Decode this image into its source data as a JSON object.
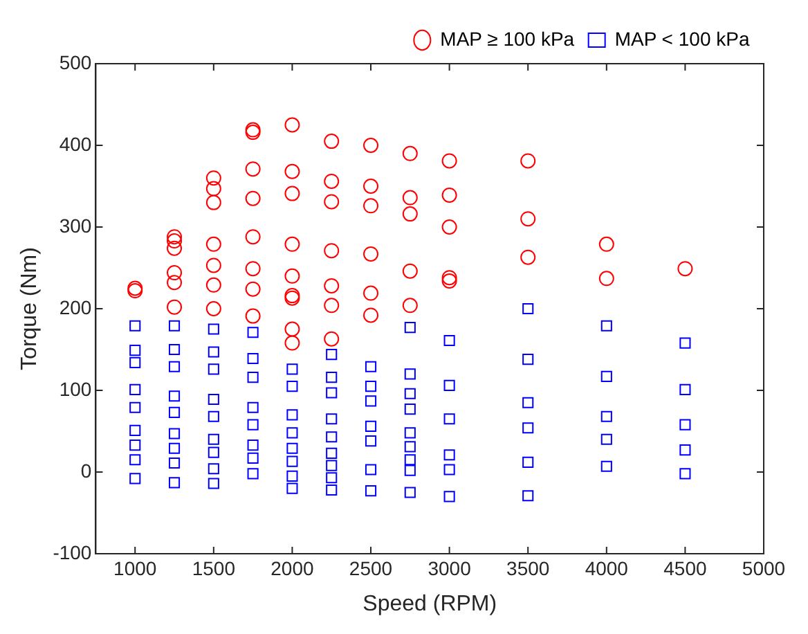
{
  "chart_data": {
    "type": "scatter",
    "xlabel": "Speed (RPM)",
    "ylabel": "Torque (Nm)",
    "xlim": [
      750,
      5000
    ],
    "ylim": [
      -100,
      500
    ],
    "xticks": [
      1000,
      1500,
      2000,
      2500,
      3000,
      3500,
      4000,
      4500,
      5000
    ],
    "yticks": [
      -100,
      0,
      100,
      200,
      300,
      400,
      500
    ],
    "grid": false,
    "legend": "top right",
    "series": [
      {
        "name": "MAP ≥ 100 kPa",
        "color": "#ff0000",
        "marker": "circle",
        "x": [
          1000,
          1000,
          1250,
          1250,
          1250,
          1250,
          1250,
          1250,
          1500,
          1500,
          1500,
          1500,
          1500,
          1500,
          1500,
          1750,
          1750,
          1750,
          1750,
          1750,
          1750,
          1750,
          1750,
          2000,
          2000,
          2000,
          2000,
          2000,
          2000,
          2000,
          2000,
          2000,
          2250,
          2250,
          2250,
          2250,
          2250,
          2250,
          2250,
          2500,
          2500,
          2500,
          2500,
          2500,
          2500,
          2750,
          2750,
          2750,
          2750,
          2750,
          3000,
          3000,
          3000,
          3000,
          3000,
          3500,
          3500,
          3500,
          4000,
          4000,
          4500
        ],
        "values": [
          222,
          225,
          288,
          283,
          274,
          244,
          232,
          202,
          360,
          347,
          330,
          279,
          253,
          229,
          200,
          419,
          416,
          371,
          335,
          288,
          249,
          224,
          191,
          425,
          368,
          341,
          279,
          240,
          216,
          213,
          175,
          158,
          405,
          356,
          331,
          271,
          228,
          204,
          163,
          400,
          350,
          326,
          267,
          219,
          192,
          390,
          336,
          316,
          246,
          204,
          381,
          339,
          300,
          238,
          234,
          381,
          310,
          263,
          279,
          237,
          249
        ]
      },
      {
        "name": "MAP < 100 kPa",
        "color": "#0000ff",
        "marker": "square",
        "x": [
          1000,
          1000,
          1000,
          1000,
          1000,
          1000,
          1000,
          1000,
          1000,
          1250,
          1250,
          1250,
          1250,
          1250,
          1250,
          1250,
          1250,
          1250,
          1500,
          1500,
          1500,
          1500,
          1500,
          1500,
          1500,
          1500,
          1500,
          1750,
          1750,
          1750,
          1750,
          1750,
          1750,
          1750,
          1750,
          2000,
          2000,
          2000,
          2000,
          2000,
          2000,
          2000,
          2000,
          2250,
          2250,
          2250,
          2250,
          2250,
          2250,
          2250,
          2250,
          2250,
          2500,
          2500,
          2500,
          2500,
          2500,
          2500,
          2500,
          2750,
          2750,
          2750,
          2750,
          2750,
          2750,
          2750,
          2750,
          2750,
          3000,
          3000,
          3000,
          3000,
          3000,
          3000,
          3500,
          3500,
          3500,
          3500,
          3500,
          3500,
          4000,
          4000,
          4000,
          4000,
          4000,
          4500,
          4500,
          4500,
          4500,
          4500
        ],
        "values": [
          179,
          149,
          134,
          101,
          79,
          51,
          33,
          15,
          -8,
          179,
          150,
          129,
          93,
          73,
          47,
          29,
          11,
          -13,
          175,
          147,
          126,
          89,
          68,
          40,
          24,
          4,
          -14,
          171,
          139,
          116,
          79,
          58,
          33,
          17,
          -2,
          126,
          105,
          70,
          48,
          29,
          13,
          -5,
          -20,
          144,
          116,
          97,
          65,
          43,
          23,
          8,
          -7,
          -22,
          129,
          105,
          87,
          56,
          38,
          3,
          -23,
          177,
          120,
          96,
          77,
          48,
          31,
          15,
          2,
          -25,
          161,
          106,
          65,
          21,
          3,
          -30,
          200,
          138,
          85,
          54,
          12,
          -29,
          179,
          117,
          68,
          40,
          7,
          158,
          101,
          58,
          27,
          -2
        ]
      }
    ]
  }
}
